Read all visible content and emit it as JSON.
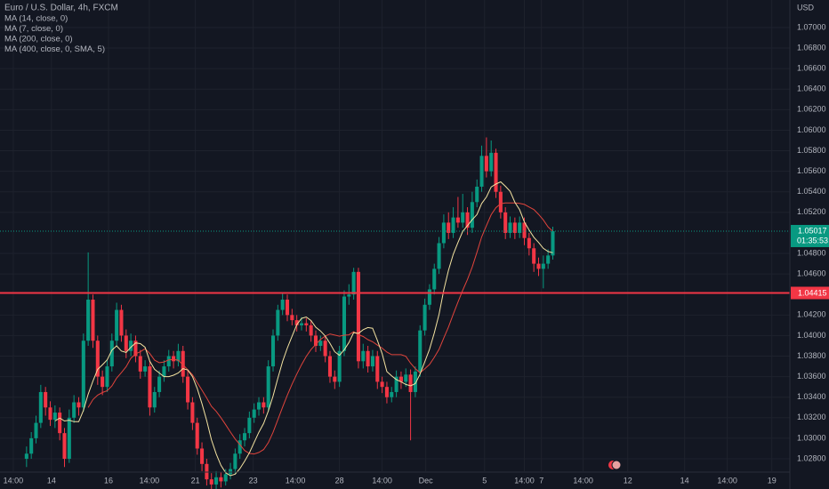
{
  "chart_data": {
    "type": "candlestick",
    "title": "Euro / U.S. Dollar, 4h, FXCM",
    "currency": "USD",
    "up_color": "#089981",
    "down_color": "#f23645",
    "grid": true,
    "ylim": [
      1.02679,
      1.07268
    ],
    "xlim": [
      -5.6,
      161
    ],
    "yticks": [
      {
        "value": 1.07,
        "label": "1.07000"
      },
      {
        "value": 1.068,
        "label": "1.06800"
      },
      {
        "value": 1.066,
        "label": "1.06600"
      },
      {
        "value": 1.064,
        "label": "1.06400"
      },
      {
        "value": 1.062,
        "label": "1.06200"
      },
      {
        "value": 1.06,
        "label": "1.06000"
      },
      {
        "value": 1.058,
        "label": "1.05800"
      },
      {
        "value": 1.056,
        "label": "1.05600"
      },
      {
        "value": 1.054,
        "label": "1.05400"
      },
      {
        "value": 1.052,
        "label": "1.05200"
      },
      {
        "value": 1.048,
        "label": "1.04800"
      },
      {
        "value": 1.046,
        "label": "1.04600"
      },
      {
        "value": 1.042,
        "label": "1.04200"
      },
      {
        "value": 1.04,
        "label": "1.04000"
      },
      {
        "value": 1.038,
        "label": "1.03800"
      },
      {
        "value": 1.036,
        "label": "1.03600"
      },
      {
        "value": 1.034,
        "label": "1.03400"
      },
      {
        "value": 1.032,
        "label": "1.03200"
      },
      {
        "value": 1.03,
        "label": "1.03000"
      },
      {
        "value": 1.028,
        "label": "1.02800"
      }
    ],
    "xticks": [
      {
        "value": -2.8,
        "label": "14:00"
      },
      {
        "value": 5.25,
        "label": "14"
      },
      {
        "value": 17.3,
        "label": "16"
      },
      {
        "value": 25.9,
        "label": "14:00"
      },
      {
        "value": 35.6,
        "label": "21"
      },
      {
        "value": 47.8,
        "label": "23"
      },
      {
        "value": 56.7,
        "label": "14:00"
      },
      {
        "value": 66,
        "label": "28"
      },
      {
        "value": 75,
        "label": "14:00"
      },
      {
        "value": 84.2,
        "label": "Dec"
      },
      {
        "value": 96.6,
        "label": "5"
      },
      {
        "value": 105,
        "label": "14:00"
      },
      {
        "value": 108.6,
        "label": "7"
      },
      {
        "value": 117.4,
        "label": "14:00"
      },
      {
        "value": 126.8,
        "label": "12"
      },
      {
        "value": 138.8,
        "label": "14"
      },
      {
        "value": 147.8,
        "label": "14:00"
      },
      {
        "value": 157.2,
        "label": "19"
      }
    ],
    "indicators": [
      {
        "label": "MA (14, close, 0)",
        "period": 14,
        "color": "#e0443c"
      },
      {
        "label": "MA (7, close, 0)",
        "period": 7,
        "color": "#f4e3a1"
      },
      {
        "label": "MA (200, close, 0)"
      },
      {
        "label": "MA (400, close, 0, SMA, 5)"
      }
    ],
    "hline": {
      "value": 1.04415,
      "color": "#f23645"
    },
    "countdown": "01:35:53",
    "candles": [
      [
        1.028,
        1.0292,
        1.0272,
        1.0285
      ],
      [
        1.0285,
        1.0306,
        1.028,
        1.03
      ],
      [
        1.03,
        1.0322,
        1.0295,
        1.0315
      ],
      [
        1.0315,
        1.0352,
        1.031,
        1.0345
      ],
      [
        1.0345,
        1.035,
        1.0322,
        1.033
      ],
      [
        1.033,
        1.0336,
        1.0312,
        1.0318
      ],
      [
        1.0318,
        1.0332,
        1.031,
        1.0325
      ],
      [
        1.0325,
        1.033,
        1.0298,
        1.0305
      ],
      [
        1.0305,
        1.031,
        1.0272,
        1.028
      ],
      [
        1.028,
        1.0328,
        1.0276,
        1.032
      ],
      [
        1.032,
        1.0342,
        1.0315,
        1.0335
      ],
      [
        1.0335,
        1.034,
        1.0322,
        1.033
      ],
      [
        1.033,
        1.0402,
        1.0326,
        1.0395
      ],
      [
        1.0395,
        1.0481,
        1.039,
        1.0435
      ],
      [
        1.0435,
        1.044,
        1.0388,
        1.0395
      ],
      [
        1.0395,
        1.04,
        1.0352,
        1.036
      ],
      [
        1.036,
        1.0366,
        1.0342,
        1.035
      ],
      [
        1.035,
        1.0376,
        1.0345,
        1.037
      ],
      [
        1.037,
        1.0402,
        1.0365,
        1.0395
      ],
      [
        1.0395,
        1.0432,
        1.039,
        1.0425
      ],
      [
        1.0425,
        1.043,
        1.0394,
        1.04
      ],
      [
        1.04,
        1.0406,
        1.0378,
        1.0385
      ],
      [
        1.0385,
        1.0402,
        1.038,
        1.0395
      ],
      [
        1.0395,
        1.04,
        1.0374,
        1.038
      ],
      [
        1.038,
        1.0386,
        1.0358,
        1.0365
      ],
      [
        1.0365,
        1.0376,
        1.036,
        1.037
      ],
      [
        1.037,
        1.0375,
        1.0322,
        1.033
      ],
      [
        1.033,
        1.035,
        1.0325,
        1.0345
      ],
      [
        1.0345,
        1.0366,
        1.034,
        1.036
      ],
      [
        1.036,
        1.0376,
        1.0355,
        1.037
      ],
      [
        1.037,
        1.0386,
        1.0365,
        1.038
      ],
      [
        1.038,
        1.0385,
        1.0368,
        1.0375
      ],
      [
        1.0375,
        1.0392,
        1.037,
        1.0385
      ],
      [
        1.0385,
        1.039,
        1.0354,
        1.036
      ],
      [
        1.036,
        1.0366,
        1.0328,
        1.0335
      ],
      [
        1.0335,
        1.034,
        1.0308,
        1.0315
      ],
      [
        1.0315,
        1.032,
        1.0284,
        1.029
      ],
      [
        1.029,
        1.0296,
        1.0268,
        1.0275
      ],
      [
        1.0275,
        1.028,
        1.0254,
        1.026
      ],
      [
        1.026,
        1.0266,
        1.025,
        1.0255
      ],
      [
        1.0255,
        1.0268,
        1.025,
        1.0262
      ],
      [
        1.0262,
        1.0267,
        1.0252,
        1.0258
      ],
      [
        1.0258,
        1.027,
        1.0254,
        1.0265
      ],
      [
        1.0265,
        1.0276,
        1.026,
        1.027
      ],
      [
        1.027,
        1.029,
        1.0265,
        1.0285
      ],
      [
        1.0285,
        1.0304,
        1.028,
        1.0298
      ],
      [
        1.0298,
        1.031,
        1.0292,
        1.0305
      ],
      [
        1.0305,
        1.0326,
        1.03,
        1.032
      ],
      [
        1.032,
        1.0334,
        1.0315,
        1.0328
      ],
      [
        1.0328,
        1.034,
        1.0322,
        1.0335
      ],
      [
        1.0335,
        1.034,
        1.0324,
        1.033
      ],
      [
        1.033,
        1.0376,
        1.0326,
        1.037
      ],
      [
        1.037,
        1.0406,
        1.0365,
        1.04
      ],
      [
        1.04,
        1.043,
        1.0395,
        1.0425
      ],
      [
        1.0425,
        1.0442,
        1.042,
        1.0435
      ],
      [
        1.0435,
        1.044,
        1.0414,
        1.042
      ],
      [
        1.042,
        1.0426,
        1.041,
        1.0415
      ],
      [
        1.0415,
        1.042,
        1.0404,
        1.041
      ],
      [
        1.041,
        1.0418,
        1.0405,
        1.0412
      ],
      [
        1.0412,
        1.0417,
        1.0404,
        1.041
      ],
      [
        1.041,
        1.0415,
        1.0394,
        1.04
      ],
      [
        1.04,
        1.0405,
        1.0384,
        1.039
      ],
      [
        1.039,
        1.04,
        1.0385,
        1.0395
      ],
      [
        1.0395,
        1.04,
        1.0374,
        1.038
      ],
      [
        1.038,
        1.0385,
        1.0354,
        1.036
      ],
      [
        1.036,
        1.0366,
        1.0348,
        1.0355
      ],
      [
        1.0355,
        1.039,
        1.035,
        1.0385
      ],
      [
        1.0385,
        1.0444,
        1.038,
        1.0438
      ],
      [
        1.0438,
        1.045,
        1.043,
        1.044
      ],
      [
        1.044,
        1.0466,
        1.0435,
        1.0462
      ],
      [
        1.0462,
        1.0466,
        1.0368,
        1.0375
      ],
      [
        1.0375,
        1.0392,
        1.0368,
        1.0385
      ],
      [
        1.0385,
        1.039,
        1.0364,
        1.037
      ],
      [
        1.037,
        1.0386,
        1.0365,
        1.038
      ],
      [
        1.038,
        1.0385,
        1.0348,
        1.0355
      ],
      [
        1.0355,
        1.036,
        1.0344,
        1.035
      ],
      [
        1.035,
        1.0355,
        1.0334,
        1.034
      ],
      [
        1.034,
        1.035,
        1.0335,
        1.0345
      ],
      [
        1.0345,
        1.0366,
        1.034,
        1.036
      ],
      [
        1.036,
        1.0365,
        1.0348,
        1.0355
      ],
      [
        1.0355,
        1.0368,
        1.035,
        1.0362
      ],
      [
        1.0362,
        1.0367,
        1.0298,
        1.0345
      ],
      [
        1.0345,
        1.037,
        1.034,
        1.0365
      ],
      [
        1.0365,
        1.041,
        1.036,
        1.0405
      ],
      [
        1.0405,
        1.0436,
        1.04,
        1.043
      ],
      [
        1.043,
        1.045,
        1.0425,
        1.0445
      ],
      [
        1.0445,
        1.047,
        1.044,
        1.0465
      ],
      [
        1.0465,
        1.0496,
        1.046,
        1.049
      ],
      [
        1.049,
        1.0518,
        1.0485,
        1.051
      ],
      [
        1.051,
        1.052,
        1.0494,
        1.05
      ],
      [
        1.05,
        1.0525,
        1.0495,
        1.0515
      ],
      [
        1.0515,
        1.0535,
        1.0505,
        1.051
      ],
      [
        1.051,
        1.0538,
        1.0505,
        1.052
      ],
      [
        1.052,
        1.0525,
        1.0498,
        1.0505
      ],
      [
        1.0505,
        1.054,
        1.05,
        1.053
      ],
      [
        1.053,
        1.0552,
        1.0525,
        1.0545
      ],
      [
        1.0545,
        1.0585,
        1.054,
        1.0575
      ],
      [
        1.0575,
        1.0593,
        1.0554,
        1.056
      ],
      [
        1.056,
        1.059,
        1.0555,
        1.0578
      ],
      [
        1.0578,
        1.0582,
        1.0534,
        1.054
      ],
      [
        1.054,
        1.0546,
        1.0514,
        1.052
      ],
      [
        1.052,
        1.0525,
        1.0494,
        1.05
      ],
      [
        1.05,
        1.0516,
        1.0495,
        1.051
      ],
      [
        1.051,
        1.0515,
        1.0494,
        1.05
      ],
      [
        1.05,
        1.0516,
        1.0495,
        1.051
      ],
      [
        1.051,
        1.0515,
        1.0488,
        1.0495
      ],
      [
        1.0495,
        1.05,
        1.0478,
        1.0485
      ],
      [
        1.0485,
        1.049,
        1.0462,
        1.047
      ],
      [
        1.047,
        1.0476,
        1.0458,
        1.0465
      ],
      [
        1.0465,
        1.0478,
        1.0446,
        1.047
      ],
      [
        1.047,
        1.0484,
        1.0465,
        1.0478
      ],
      [
        1.0478,
        1.0506,
        1.0474,
        1.05017
      ]
    ]
  }
}
